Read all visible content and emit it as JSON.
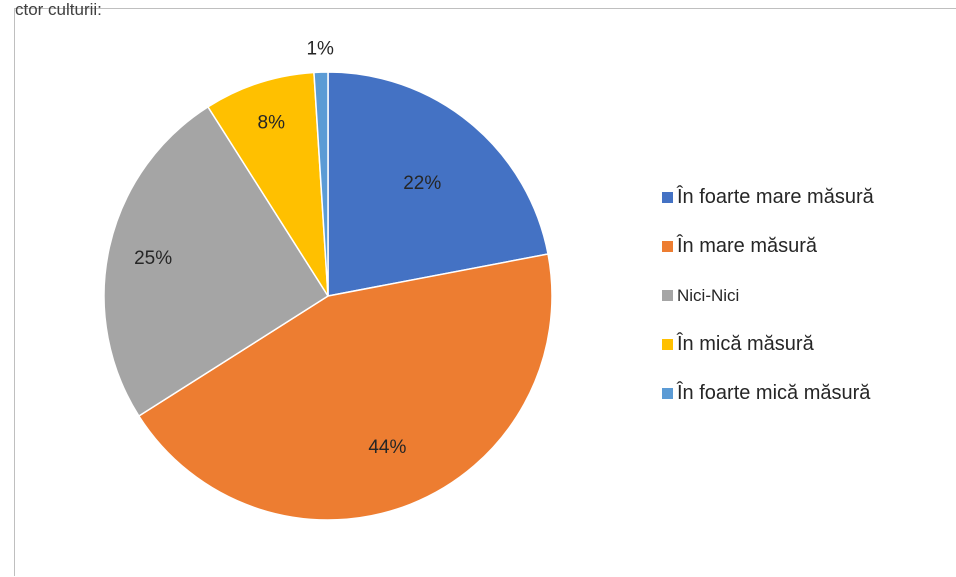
{
  "corner_fragment": "ctor culturii:",
  "chart_data": {
    "type": "pie",
    "title": "",
    "categories": [
      "În foarte mare măsură",
      "În mare măsură",
      "Nici-Nici",
      "În mică măsură",
      "În foarte mică măsură"
    ],
    "values": [
      22,
      44,
      25,
      8,
      1
    ],
    "labels": [
      "22%",
      "44%",
      "25%",
      "8%",
      "1%"
    ],
    "colors": [
      "#4472c4",
      "#ed7d31",
      "#a5a5a5",
      "#ffc000",
      "#5b9bd5"
    ],
    "legend_position": "right"
  }
}
